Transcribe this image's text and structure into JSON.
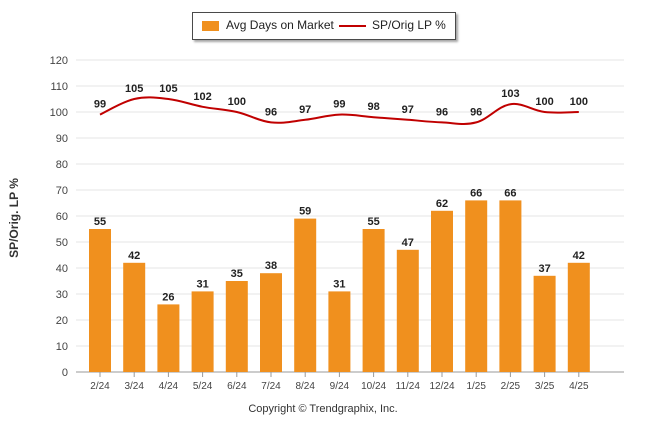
{
  "chart_data": {
    "type": "bar",
    "categories": [
      "2/24",
      "3/24",
      "4/24",
      "5/24",
      "6/24",
      "7/24",
      "8/24",
      "9/24",
      "10/24",
      "11/24",
      "12/24",
      "1/25",
      "2/25",
      "3/25",
      "4/25"
    ],
    "series": [
      {
        "name": "Avg Days on Market",
        "type": "bar",
        "color": "#F0901E",
        "values": [
          55,
          42,
          26,
          31,
          35,
          38,
          59,
          31,
          55,
          47,
          62,
          66,
          66,
          37,
          42
        ]
      },
      {
        "name": "SP/Orig LP %",
        "type": "line",
        "color": "#C00000",
        "values": [
          99,
          105,
          105,
          102,
          100,
          96,
          97,
          99,
          98,
          97,
          96,
          96,
          103,
          100,
          100
        ]
      }
    ],
    "ylabel": "SP/Orig. LP %",
    "ylim": [
      0,
      120
    ],
    "yticks": [
      0,
      10,
      20,
      30,
      40,
      50,
      60,
      70,
      80,
      90,
      100,
      110,
      120
    ],
    "grid": true,
    "legend_placement": "top-center"
  },
  "copyright": "Copyright © Trendgraphix, Inc."
}
